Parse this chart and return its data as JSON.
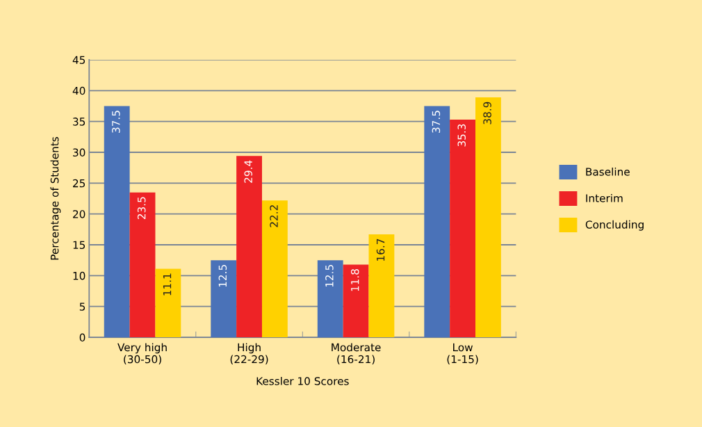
{
  "chart_data": {
    "type": "bar",
    "xlabel": "Kessler 10 Scores",
    "ylabel": "Percentage of Students",
    "categories": [
      "Very high\n(30-50)",
      "High\n(22-29)",
      "Moderate\n(16-21)",
      "Low\n(1-15)"
    ],
    "series": [
      {
        "name": "Baseline",
        "color": "#4a72b8",
        "values": [
          37.5,
          12.5,
          12.5,
          37.5
        ]
      },
      {
        "name": "Interim",
        "color": "#ee2326",
        "values": [
          23.5,
          29.4,
          11.8,
          35.3
        ]
      },
      {
        "name": "Concluding",
        "color": "#ffd100",
        "values": [
          11.1,
          22.2,
          16.7,
          38.9
        ]
      }
    ],
    "ylim": [
      0,
      45
    ],
    "yticks": [
      0,
      5,
      10,
      15,
      20,
      25,
      30,
      35,
      40,
      45
    ],
    "grid": "y",
    "legend": "right",
    "data_labels": true
  }
}
